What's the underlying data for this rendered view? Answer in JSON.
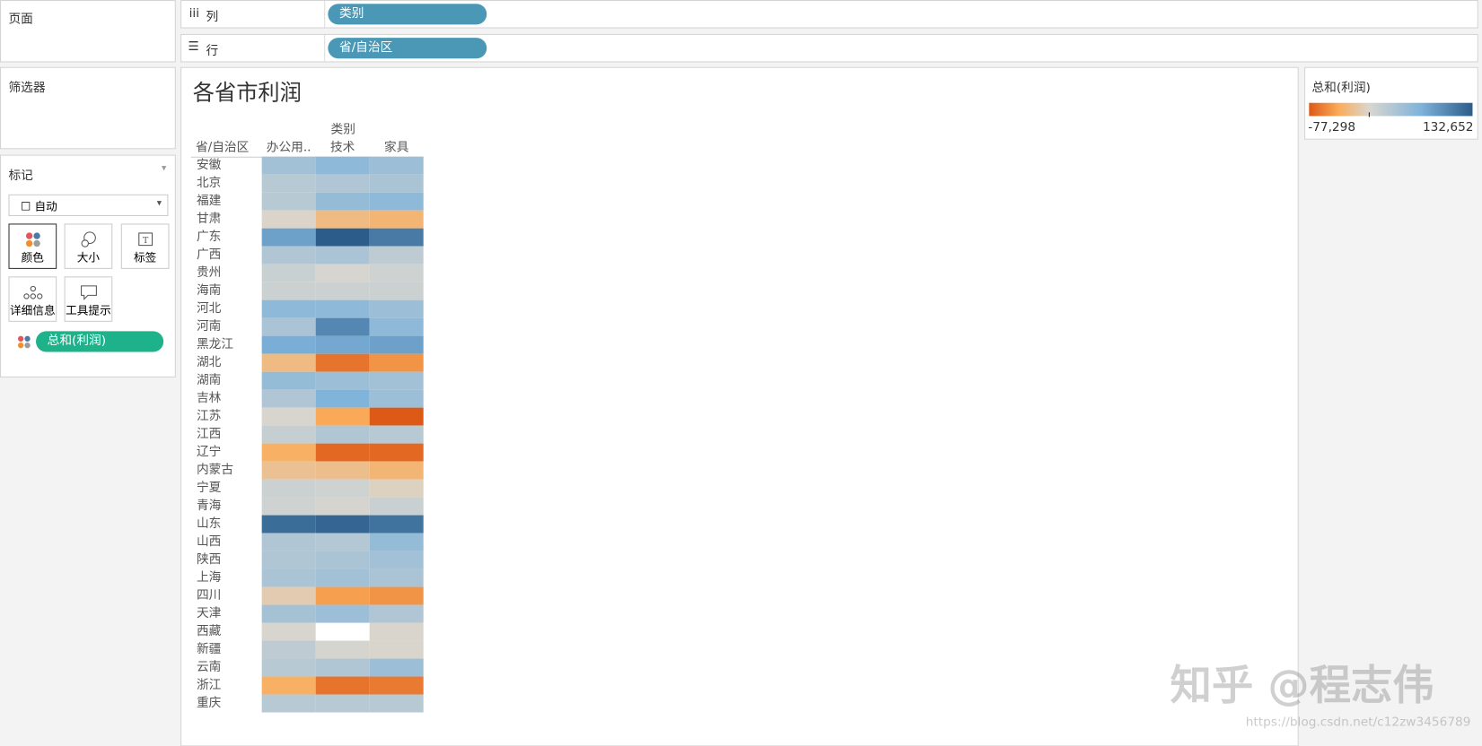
{
  "ui": {
    "pages_label": "页面",
    "columns_label": "列",
    "columns_pill": "类别",
    "rows_label": "行",
    "rows_pill": "省/自治区",
    "filters_label": "筛选器",
    "marks_label": "标记",
    "mark_type": "自动",
    "mark_buttons": [
      "颜色",
      "大小",
      "标签",
      "详细信息",
      "工具提示"
    ],
    "marks_pill": "总和(利润)",
    "watermark": "知乎 @程志伟",
    "watermark_url": "https://blog.csdn.net/c12zw3456789"
  },
  "chart_data": {
    "type": "heatmap",
    "title": "各省市利润",
    "x_label": "类别",
    "y_label": "省/自治区",
    "categories": [
      "办公用..",
      "技术",
      "家具"
    ],
    "rows": [
      "安徽",
      "北京",
      "福建",
      "甘肃",
      "广东",
      "广西",
      "贵州",
      "海南",
      "河北",
      "河南",
      "黑龙江",
      "湖北",
      "湖南",
      "吉林",
      "江苏",
      "江西",
      "辽宁",
      "内蒙古",
      "宁夏",
      "青海",
      "山东",
      "山西",
      "陕西",
      "上海",
      "四川",
      "天津",
      "西藏",
      "新疆",
      "云南",
      "浙江",
      "重庆"
    ],
    "values": [
      [
        40000,
        55000,
        45000
      ],
      [
        25000,
        30000,
        35000
      ],
      [
        25000,
        50000,
        55000
      ],
      [
        -2000,
        -25000,
        -30000
      ],
      [
        80000,
        132652,
        110000
      ],
      [
        30000,
        35000,
        20000
      ],
      [
        12000,
        2000,
        8000
      ],
      [
        10000,
        10000,
        10000
      ],
      [
        55000,
        55000,
        45000
      ],
      [
        35000,
        100000,
        55000
      ],
      [
        70000,
        75000,
        80000
      ],
      [
        -25000,
        -65000,
        -50000
      ],
      [
        50000,
        45000,
        40000
      ],
      [
        30000,
        65000,
        45000
      ],
      [
        1000,
        -40000,
        -77298
      ],
      [
        15000,
        30000,
        25000
      ],
      [
        -35000,
        -70000,
        -70000
      ],
      [
        -20000,
        -22000,
        -30000
      ],
      [
        10000,
        8000,
        -5000
      ],
      [
        8000,
        3000,
        12000
      ],
      [
        120000,
        125000,
        115000
      ],
      [
        30000,
        28000,
        50000
      ],
      [
        30000,
        35000,
        40000
      ],
      [
        35000,
        40000,
        35000
      ],
      [
        -10000,
        -45000,
        -50000
      ],
      [
        38000,
        45000,
        30000
      ],
      [
        1000,
        null,
        -1000
      ],
      [
        20000,
        3000,
        -1000
      ],
      [
        25000,
        30000,
        45000
      ],
      [
        -35000,
        -65000,
        -62000
      ],
      [
        25000,
        25000,
        25000
      ]
    ],
    "color_scale": {
      "title": "总和(利润)",
      "range": [
        -77298,
        132652
      ],
      "ticks": [
        {
          "value": -77298,
          "label": "-77,298"
        },
        {
          "value": 132652,
          "label": "132,652"
        }
      ],
      "colors": [
        "#dd5a16",
        "#fbac5a",
        "#d9d6cf",
        "#7fb3da",
        "#2b5c8a"
      ]
    }
  }
}
